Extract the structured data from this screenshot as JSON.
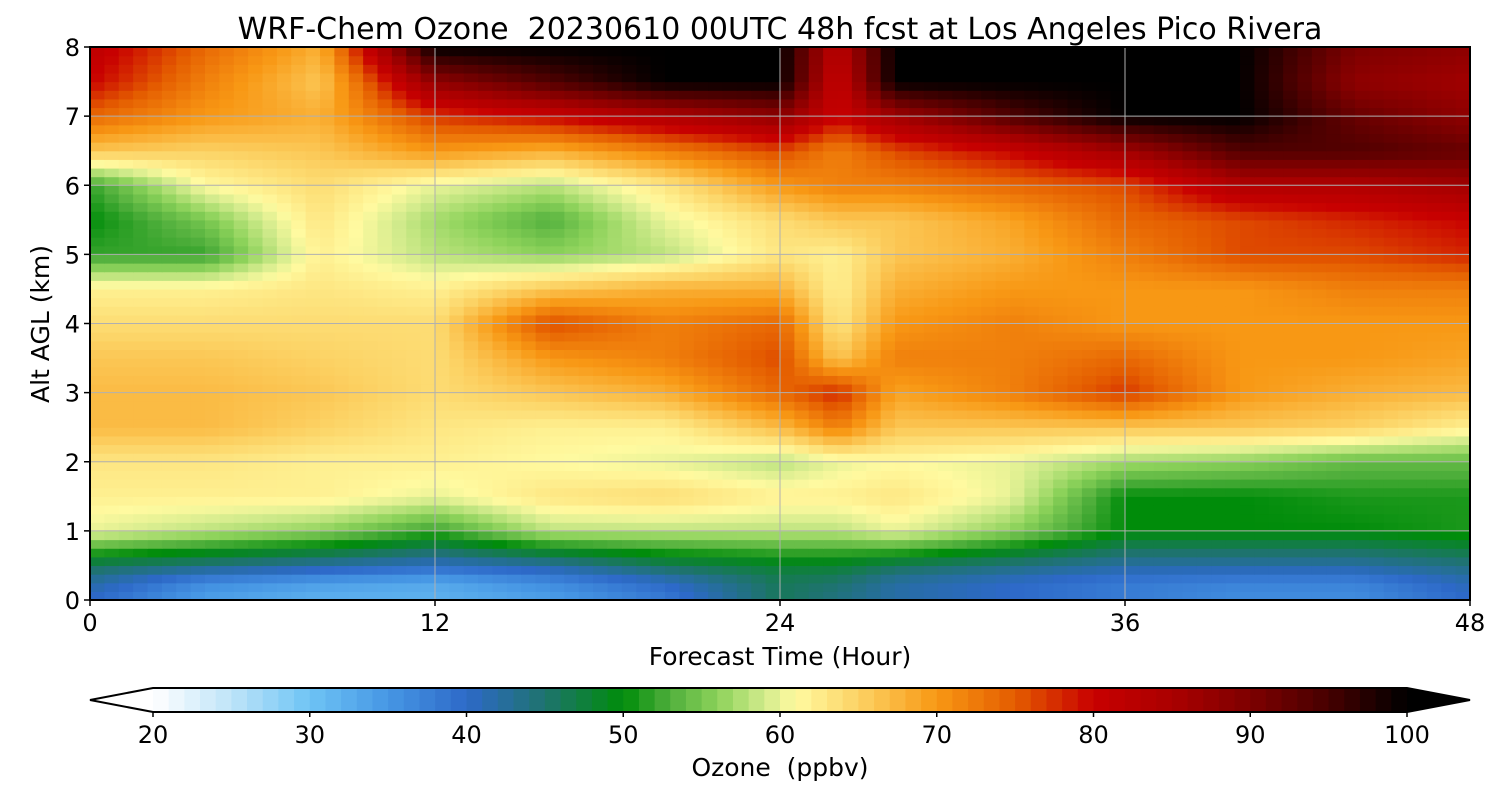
{
  "chart_data": {
    "type": "heatmap",
    "title": "WRF-Chem Ozone  20230610 00UTC 48h fcst at Los Angeles Pico Rivera",
    "xlabel": "Forecast Time (Hour)",
    "ylabel": "Alt AGL (km)",
    "xlim": [
      0,
      48
    ],
    "ylim": [
      0,
      8
    ],
    "x_ticks": [
      0,
      12,
      24,
      36,
      48
    ],
    "y_ticks": [
      0,
      1,
      2,
      3,
      4,
      5,
      6,
      7,
      8
    ],
    "grid": true,
    "colorbar": {
      "label": "Ozone  (ppbv)",
      "min": 20,
      "max": 100,
      "ticks": [
        20,
        30,
        40,
        50,
        60,
        70,
        80,
        90,
        100
      ],
      "extend": "both",
      "orientation": "horizontal",
      "placement": "bottom"
    },
    "x": [
      0,
      4,
      8,
      12,
      16,
      20,
      24,
      26,
      28,
      32,
      36,
      40,
      44,
      48
    ],
    "y": [
      0,
      0.25,
      0.5,
      1,
      1.5,
      2,
      2.5,
      3,
      3.5,
      4,
      4.5,
      5,
      5.5,
      6,
      6.5,
      7,
      7.5,
      8
    ],
    "z": [
      [
        40,
        34,
        32,
        32,
        34,
        38,
        46,
        44,
        42,
        40,
        38,
        36,
        36,
        40
      ],
      [
        42,
        36,
        34,
        33,
        36,
        40,
        46,
        45,
        42,
        40,
        38,
        37,
        37,
        41
      ],
      [
        46,
        44,
        42,
        40,
        42,
        46,
        48,
        48,
        46,
        44,
        42,
        42,
        42,
        44
      ],
      [
        60,
        58,
        56,
        52,
        58,
        58,
        58,
        58,
        60,
        56,
        50,
        50,
        50,
        51
      ],
      [
        62,
        62,
        62,
        60,
        63,
        64,
        62,
        62,
        63,
        60,
        50,
        50,
        51,
        51
      ],
      [
        63,
        63,
        62,
        62,
        61,
        60,
        58,
        60,
        61,
        60,
        57,
        56,
        54,
        54
      ],
      [
        67,
        67,
        65,
        63,
        62,
        62,
        67,
        72,
        66,
        66,
        66,
        66,
        65,
        62
      ],
      [
        67,
        67,
        66,
        64,
        66,
        68,
        74,
        78,
        69,
        72,
        77,
        70,
        68,
        67
      ],
      [
        66,
        66,
        65,
        64,
        70,
        72,
        76,
        66,
        72,
        72,
        74,
        70,
        70,
        69
      ],
      [
        64,
        64,
        64,
        64,
        76,
        72,
        74,
        63,
        70,
        72,
        70,
        70,
        70,
        70
      ],
      [
        62,
        62,
        63,
        62,
        66,
        68,
        68,
        62,
        68,
        70,
        70,
        70,
        72,
        72
      ],
      [
        52,
        52,
        62,
        58,
        56,
        58,
        63,
        62,
        66,
        68,
        72,
        76,
        76,
        78
      ],
      [
        50,
        55,
        63,
        57,
        53,
        60,
        64,
        66,
        66,
        69,
        74,
        76,
        78,
        80
      ],
      [
        52,
        61,
        64,
        60,
        58,
        63,
        70,
        72,
        72,
        74,
        76,
        84,
        84,
        86
      ],
      [
        66,
        65,
        66,
        70,
        68,
        72,
        76,
        72,
        76,
        80,
        86,
        94,
        94,
        92
      ],
      [
        74,
        70,
        68,
        77,
        80,
        84,
        88,
        80,
        86,
        94,
        100,
        100,
        92,
        88
      ],
      [
        80,
        72,
        66,
        88,
        94,
        100,
        100,
        80,
        100,
        100,
        100,
        100,
        88,
        86
      ],
      [
        82,
        74,
        68,
        100,
        100,
        100,
        100,
        82,
        100,
        100,
        100,
        100,
        90,
        88
      ]
    ]
  }
}
